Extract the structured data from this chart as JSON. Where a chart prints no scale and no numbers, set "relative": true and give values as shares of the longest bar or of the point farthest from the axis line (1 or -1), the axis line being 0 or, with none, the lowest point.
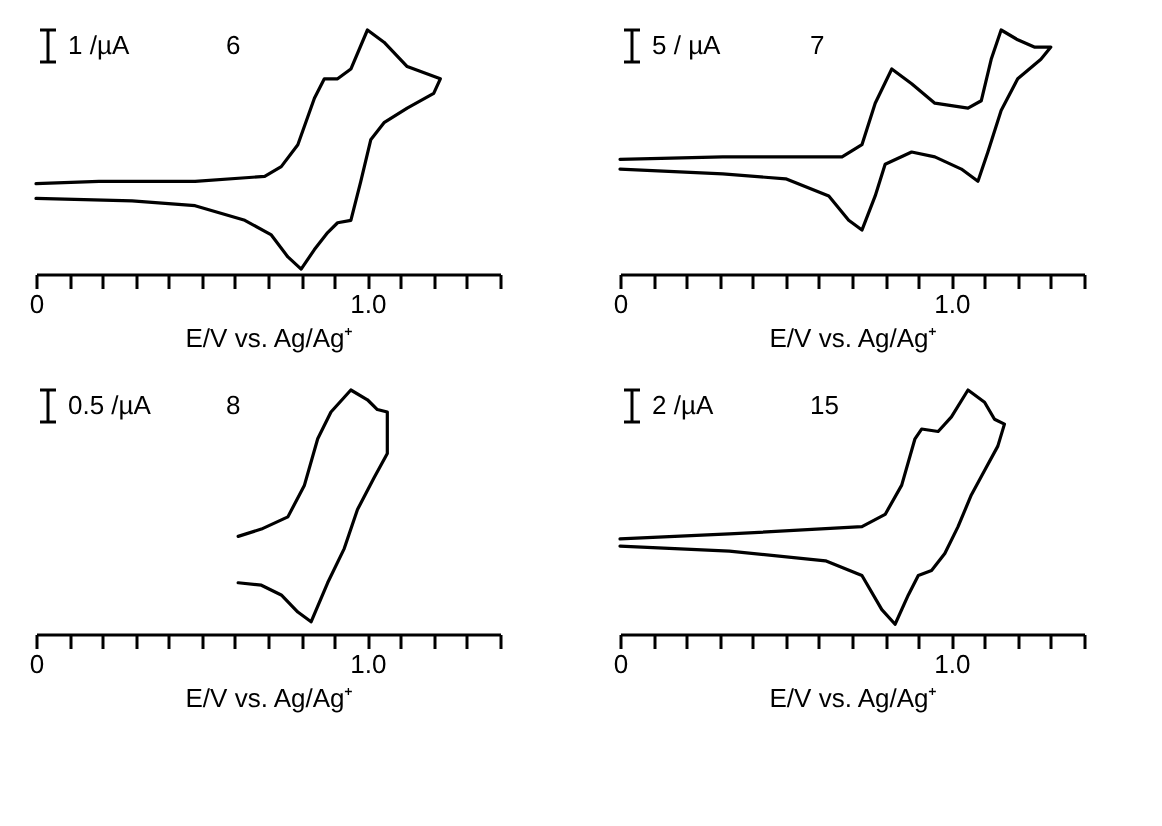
{
  "chart_data": [
    {
      "type": "line",
      "relative": true,
      "xlabel": "E/V vs. Ag/Ag⁺",
      "annotations": [
        "1 /µA",
        "6"
      ],
      "grid": false,
      "xlim": [
        0,
        1.4
      ],
      "xticks": [
        0,
        {
          "value": 0.1,
          "label": null
        },
        {
          "value": 0.2,
          "label": null
        },
        {
          "value": 0.3,
          "label": null
        },
        {
          "value": 0.4,
          "label": null
        },
        {
          "value": 0.5,
          "label": null
        },
        {
          "value": 0.6,
          "label": null
        },
        {
          "value": 0.7,
          "label": null
        },
        {
          "value": 0.8,
          "label": null
        },
        {
          "value": 0.9,
          "label": null
        },
        {
          "value": 1,
          "label": "1.0"
        },
        {
          "value": 1.1,
          "label": null
        },
        {
          "value": 1.2,
          "label": null
        },
        {
          "value": 1.3,
          "label": null
        },
        {
          "value": 1.4,
          "label": null
        }
      ],
      "series": [
        {
          "color": "#000000",
          "x": [
            0,
            0.19,
            0.48,
            0.69,
            0.74,
            0.79,
            0.84,
            0.87,
            0.91,
            0.95,
            1.0,
            1.05,
            1.12,
            1.22,
            1.2,
            1.12,
            1.05,
            1.01,
            0.98,
            0.95,
            0.91,
            0.88,
            0.84,
            0.8,
            0.76,
            0.71,
            0.63,
            0.48,
            0.29,
            0
          ],
          "values": [
            0.37,
            0.38,
            0.38,
            0.4,
            0.44,
            0.53,
            0.72,
            0.8,
            0.8,
            0.84,
            1.0,
            0.95,
            0.85,
            0.8,
            0.74,
            0.68,
            0.62,
            0.55,
            0.38,
            0.22,
            0.21,
            0.17,
            0.1,
            0.02,
            0.07,
            0.16,
            0.22,
            0.28,
            0.3,
            0.31
          ]
        }
      ]
    },
    {
      "type": "line",
      "relative": true,
      "xlabel": "E/V vs. Ag/Ag⁺",
      "annotations": [
        "5 / µA",
        "7"
      ],
      "grid": false,
      "xlim": [
        0,
        1.4
      ],
      "xticks": [
        0,
        {
          "value": 0.1,
          "label": null
        },
        {
          "value": 0.2,
          "label": null
        },
        {
          "value": 0.3,
          "label": null
        },
        {
          "value": 0.4,
          "label": null
        },
        {
          "value": 0.5,
          "label": null
        },
        {
          "value": 0.6,
          "label": null
        },
        {
          "value": 0.7,
          "label": null
        },
        {
          "value": 0.8,
          "label": null
        },
        {
          "value": 0.9,
          "label": null
        },
        {
          "value": 1,
          "label": "1.0"
        },
        {
          "value": 1.1,
          "label": null
        },
        {
          "value": 1.2,
          "label": null
        },
        {
          "value": 1.3,
          "label": null
        },
        {
          "value": 1.4,
          "label": null
        }
      ],
      "series": [
        {
          "color": "#000000",
          "x": [
            0,
            0.31,
            0.67,
            0.73,
            0.77,
            0.82,
            0.88,
            0.95,
            1.05,
            1.09,
            1.12,
            1.15,
            1.2,
            1.25,
            1.3,
            1.27,
            1.2,
            1.15,
            1.11,
            1.08,
            1.03,
            0.95,
            0.88,
            0.8,
            0.77,
            0.73,
            0.69,
            0.63,
            0.5,
            0.31,
            0
          ],
          "values": [
            0.47,
            0.48,
            0.48,
            0.53,
            0.7,
            0.84,
            0.78,
            0.7,
            0.68,
            0.71,
            0.88,
            1.0,
            0.96,
            0.93,
            0.93,
            0.88,
            0.8,
            0.67,
            0.5,
            0.38,
            0.43,
            0.48,
            0.5,
            0.45,
            0.32,
            0.18,
            0.22,
            0.32,
            0.39,
            0.41,
            0.43
          ]
        }
      ]
    },
    {
      "type": "line",
      "relative": true,
      "xlabel": "E/V vs. Ag/Ag⁺",
      "annotations": [
        "0.5 /µA",
        "8"
      ],
      "grid": false,
      "xlim": [
        0,
        1.4
      ],
      "xticks": [
        0,
        {
          "value": 0.1,
          "label": null
        },
        {
          "value": 0.2,
          "label": null
        },
        {
          "value": 0.3,
          "label": null
        },
        {
          "value": 0.4,
          "label": null
        },
        {
          "value": 0.5,
          "label": null
        },
        {
          "value": 0.6,
          "label": null
        },
        {
          "value": 0.7,
          "label": null
        },
        {
          "value": 0.8,
          "label": null
        },
        {
          "value": 0.9,
          "label": null
        },
        {
          "value": 1,
          "label": "1.0"
        },
        {
          "value": 1.1,
          "label": null
        },
        {
          "value": 1.2,
          "label": null
        },
        {
          "value": 1.3,
          "label": null
        },
        {
          "value": 1.4,
          "label": null
        }
      ],
      "series": [
        {
          "color": "#000000",
          "x": [
            0.61,
            0.68,
            0.76,
            0.81,
            0.85,
            0.89,
            0.95,
            1.0,
            1.03,
            1.06,
            1.06,
            1.02,
            0.97,
            0.93,
            0.88,
            0.83,
            0.79,
            0.74,
            0.68,
            0.61
          ],
          "values": [
            0.4,
            0.43,
            0.48,
            0.61,
            0.8,
            0.91,
            1.0,
            0.96,
            0.92,
            0.91,
            0.74,
            0.64,
            0.51,
            0.35,
            0.21,
            0.05,
            0.09,
            0.16,
            0.2,
            0.21
          ]
        }
      ]
    },
    {
      "type": "line",
      "relative": true,
      "xlabel": "E/V vs. Ag/Ag⁺",
      "annotations": [
        "2 /µA",
        "15"
      ],
      "grid": false,
      "xlim": [
        0,
        1.4
      ],
      "xticks": [
        0,
        {
          "value": 0.1,
          "label": null
        },
        {
          "value": 0.2,
          "label": null
        },
        {
          "value": 0.3,
          "label": null
        },
        {
          "value": 0.4,
          "label": null
        },
        {
          "value": 0.5,
          "label": null
        },
        {
          "value": 0.6,
          "label": null
        },
        {
          "value": 0.7,
          "label": null
        },
        {
          "value": 0.8,
          "label": null
        },
        {
          "value": 0.9,
          "label": null
        },
        {
          "value": 1,
          "label": "1.0"
        },
        {
          "value": 1.1,
          "label": null
        },
        {
          "value": 1.2,
          "label": null
        },
        {
          "value": 1.3,
          "label": null
        },
        {
          "value": 1.4,
          "label": null
        }
      ],
      "series": [
        {
          "color": "#000000",
          "x": [
            0,
            0.33,
            0.73,
            0.8,
            0.85,
            0.89,
            0.91,
            0.96,
            1.0,
            1.05,
            1.1,
            1.13,
            1.16,
            1.14,
            1.1,
            1.06,
            1.02,
            0.98,
            0.94,
            0.9,
            0.87,
            0.83,
            0.79,
            0.73,
            0.62,
            0.33,
            0
          ],
          "values": [
            0.39,
            0.41,
            0.44,
            0.49,
            0.61,
            0.8,
            0.84,
            0.83,
            0.89,
            1.0,
            0.95,
            0.88,
            0.86,
            0.77,
            0.67,
            0.57,
            0.44,
            0.33,
            0.26,
            0.24,
            0.16,
            0.04,
            0.1,
            0.24,
            0.3,
            0.34,
            0.36
          ]
        }
      ]
    }
  ]
}
